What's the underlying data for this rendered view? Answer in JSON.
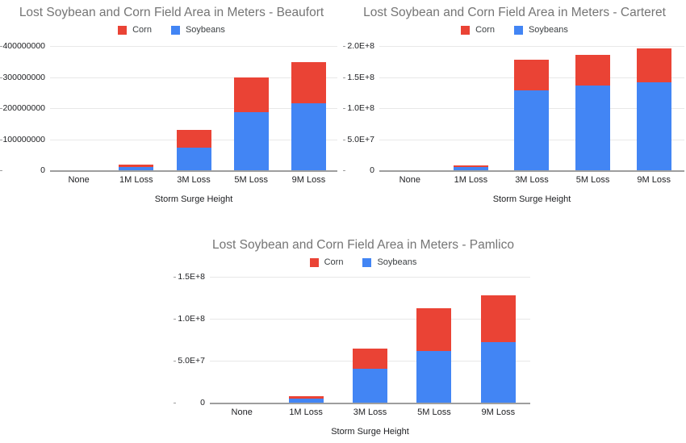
{
  "page": {
    "background": "#ffffff"
  },
  "colors": {
    "corn": "#EA4335",
    "soybeans": "#4285F4",
    "title_text": "#757575",
    "axis_text": "#202124",
    "gridline": "#e8e8e8",
    "baseline": "#9e9e9e"
  },
  "chart_data": [
    {
      "type": "bar",
      "stacked": true,
      "title": "Lost Soybean and Corn Field Area in Meters - Beaufort",
      "xlabel": "Storm Surge Height",
      "legend_position": "top",
      "grid": true,
      "categories": [
        "None",
        "1M Loss",
        "3M Loss",
        "5M Loss",
        "9M Loss"
      ],
      "series": [
        {
          "name": "Corn",
          "color": "#EA4335",
          "values": [
            0,
            7000000,
            58000000,
            114000000,
            133000000
          ]
        },
        {
          "name": "Soybeans",
          "color": "#4285F4",
          "values": [
            0,
            11000000,
            73000000,
            186000000,
            215000000
          ]
        }
      ],
      "stack_bottom_series": "Soybeans",
      "ylim": [
        0,
        400000000
      ],
      "yticks": [
        {
          "label": "400000000",
          "value": 400000000
        },
        {
          "label": "300000000",
          "value": 300000000
        },
        {
          "label": "200000000",
          "value": 200000000
        },
        {
          "label": "100000000",
          "value": 100000000
        },
        {
          "label": "0",
          "value": 0
        }
      ]
    },
    {
      "type": "bar",
      "stacked": true,
      "title": "Lost Soybean and Corn Field Area in Meters - Carteret",
      "xlabel": "Storm Surge Height",
      "legend_position": "top",
      "grid": true,
      "categories": [
        "None",
        "1M Loss",
        "3M Loss",
        "5M Loss",
        "9M Loss"
      ],
      "series": [
        {
          "name": "Corn",
          "color": "#EA4335",
          "values": [
            0,
            2500000,
            49000000,
            50000000,
            54000000
          ]
        },
        {
          "name": "Soybeans",
          "color": "#4285F4",
          "values": [
            0,
            5500000,
            129000000,
            136000000,
            142000000
          ]
        }
      ],
      "stack_bottom_series": "Soybeans",
      "ylim": [
        0,
        200000000
      ],
      "yticks": [
        {
          "label": "2.0E+8",
          "value": 200000000
        },
        {
          "label": "1.5E+8",
          "value": 150000000
        },
        {
          "label": "1.0E+8",
          "value": 100000000
        },
        {
          "label": "5.0E+7",
          "value": 50000000
        },
        {
          "label": "0",
          "value": 0
        }
      ]
    },
    {
      "type": "bar",
      "stacked": true,
      "title": "Lost Soybean and Corn Field Area in Meters - Pamlico",
      "xlabel": "Storm Surge Height",
      "legend_position": "top",
      "grid": true,
      "categories": [
        "None",
        "1M Loss",
        "3M Loss",
        "5M Loss",
        "9M Loss"
      ],
      "series": [
        {
          "name": "Corn",
          "color": "#EA4335",
          "values": [
            0,
            2500000,
            24000000,
            51000000,
            56000000
          ]
        },
        {
          "name": "Soybeans",
          "color": "#4285F4",
          "values": [
            0,
            5000000,
            40000000,
            62000000,
            72000000
          ]
        }
      ],
      "stack_bottom_series": "Soybeans",
      "ylim": [
        0,
        150000000
      ],
      "yticks": [
        {
          "label": "1.5E+8",
          "value": 150000000
        },
        {
          "label": "1.0E+8",
          "value": 100000000
        },
        {
          "label": "5.0E+7",
          "value": 50000000
        },
        {
          "label": "0",
          "value": 0
        }
      ]
    }
  ]
}
